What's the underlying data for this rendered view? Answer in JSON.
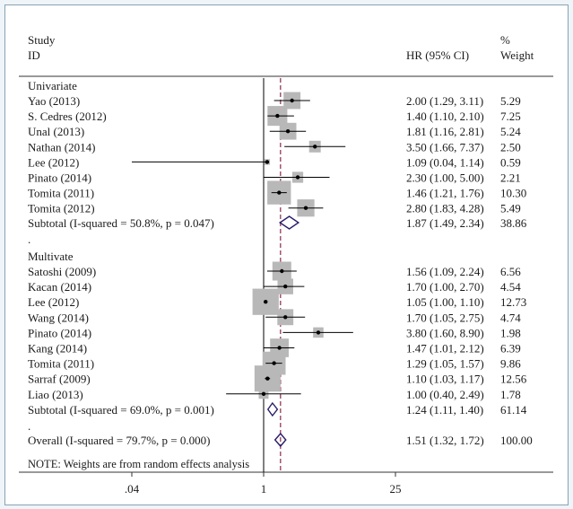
{
  "header": {
    "study": "Study",
    "id": "ID",
    "hr": "HR (95% CI)",
    "pct": "%",
    "weight": "Weight"
  },
  "note": "NOTE: Weights are from random effects analysis",
  "chart_data": {
    "type": "forest",
    "x_scale": "log",
    "x_ticks": [
      ".04",
      "1",
      "25"
    ],
    "x_tick_values": [
      0.04,
      1,
      25
    ],
    "null_line": 1,
    "overall_line": 1.51,
    "groups": [
      {
        "label": "Univariate",
        "studies": [
          {
            "study": "Yao (2013)",
            "hr": 2.0,
            "lo": 1.29,
            "hi": 3.11,
            "ci_text": "2.00 (1.29, 3.11)",
            "weight": "5.29"
          },
          {
            "study": "S. Cedres (2012)",
            "hr": 1.4,
            "lo": 1.1,
            "hi": 2.1,
            "ci_text": "1.40 (1.10, 2.10)",
            "weight": "7.25"
          },
          {
            "study": "Unal (2013)",
            "hr": 1.81,
            "lo": 1.16,
            "hi": 2.81,
            "ci_text": "1.81 (1.16, 2.81)",
            "weight": "5.24"
          },
          {
            "study": "Nathan (2014)",
            "hr": 3.5,
            "lo": 1.66,
            "hi": 7.37,
            "ci_text": "3.50 (1.66, 7.37)",
            "weight": "2.50"
          },
          {
            "study": "Lee (2012)",
            "hr": 1.09,
            "lo": 0.04,
            "hi": 1.14,
            "ci_text": "1.09 (0.04, 1.14)",
            "weight": "0.59"
          },
          {
            "study": "Pinato (2014)",
            "hr": 2.3,
            "lo": 1.0,
            "hi": 5.0,
            "ci_text": "2.30 (1.00, 5.00)",
            "weight": "2.21"
          },
          {
            "study": "Tomita (2011)",
            "hr": 1.46,
            "lo": 1.21,
            "hi": 1.76,
            "ci_text": "1.46 (1.21, 1.76)",
            "weight": "10.30"
          },
          {
            "study": "Tomita (2012)",
            "hr": 2.8,
            "lo": 1.83,
            "hi": 4.28,
            "ci_text": "2.80 (1.83, 4.28)",
            "weight": "5.49"
          }
        ],
        "subtotal": {
          "label": "Subtotal  (I-squared = 50.8%, p = 0.047)",
          "hr": 1.87,
          "lo": 1.49,
          "hi": 2.34,
          "ci_text": "1.87 (1.49, 2.34)",
          "weight": "38.86"
        }
      },
      {
        "label": "Multivate",
        "studies": [
          {
            "study": "Satoshi (2009)",
            "hr": 1.56,
            "lo": 1.09,
            "hi": 2.24,
            "ci_text": "1.56 (1.09, 2.24)",
            "weight": "6.56"
          },
          {
            "study": "Kacan (2014)",
            "hr": 1.7,
            "lo": 1.0,
            "hi": 2.7,
            "ci_text": "1.70 (1.00, 2.70)",
            "weight": "4.54"
          },
          {
            "study": "Lee (2012)",
            "hr": 1.05,
            "lo": 1.0,
            "hi": 1.1,
            "ci_text": "1.05 (1.00, 1.10)",
            "weight": "12.73"
          },
          {
            "study": "Wang (2014)",
            "hr": 1.7,
            "lo": 1.05,
            "hi": 2.75,
            "ci_text": "1.70 (1.05, 2.75)",
            "weight": "4.74"
          },
          {
            "study": "Pinato (2014)",
            "hr": 3.8,
            "lo": 1.6,
            "hi": 8.9,
            "ci_text": "3.80 (1.60, 8.90)",
            "weight": "1.98"
          },
          {
            "study": "Kang (2014)",
            "hr": 1.47,
            "lo": 1.01,
            "hi": 2.12,
            "ci_text": "1.47 (1.01, 2.12)",
            "weight": "6.39"
          },
          {
            "study": "Tomita (2011)",
            "hr": 1.29,
            "lo": 1.05,
            "hi": 1.57,
            "ci_text": "1.29 (1.05, 1.57)",
            "weight": "9.86"
          },
          {
            "study": "Sarraf (2009)",
            "hr": 1.1,
            "lo": 1.03,
            "hi": 1.17,
            "ci_text": "1.10 (1.03, 1.17)",
            "weight": "12.56"
          },
          {
            "study": "Liao (2013)",
            "hr": 1.0,
            "lo": 0.4,
            "hi": 2.49,
            "ci_text": "1.00 (0.40, 2.49)",
            "weight": "1.78"
          }
        ],
        "subtotal": {
          "label": "Subtotal  (I-squared = 69.0%, p = 0.001)",
          "hr": 1.24,
          "lo": 1.11,
          "hi": 1.4,
          "ci_text": "1.24 (1.11, 1.40)",
          "weight": "61.14"
        }
      }
    ],
    "overall": {
      "label": "Overall  (I-squared = 79.7%, p = 0.000)",
      "hr": 1.51,
      "lo": 1.32,
      "hi": 1.72,
      "ci_text": "1.51 (1.32, 1.72)",
      "weight": "100.00"
    },
    "separator": "."
  }
}
